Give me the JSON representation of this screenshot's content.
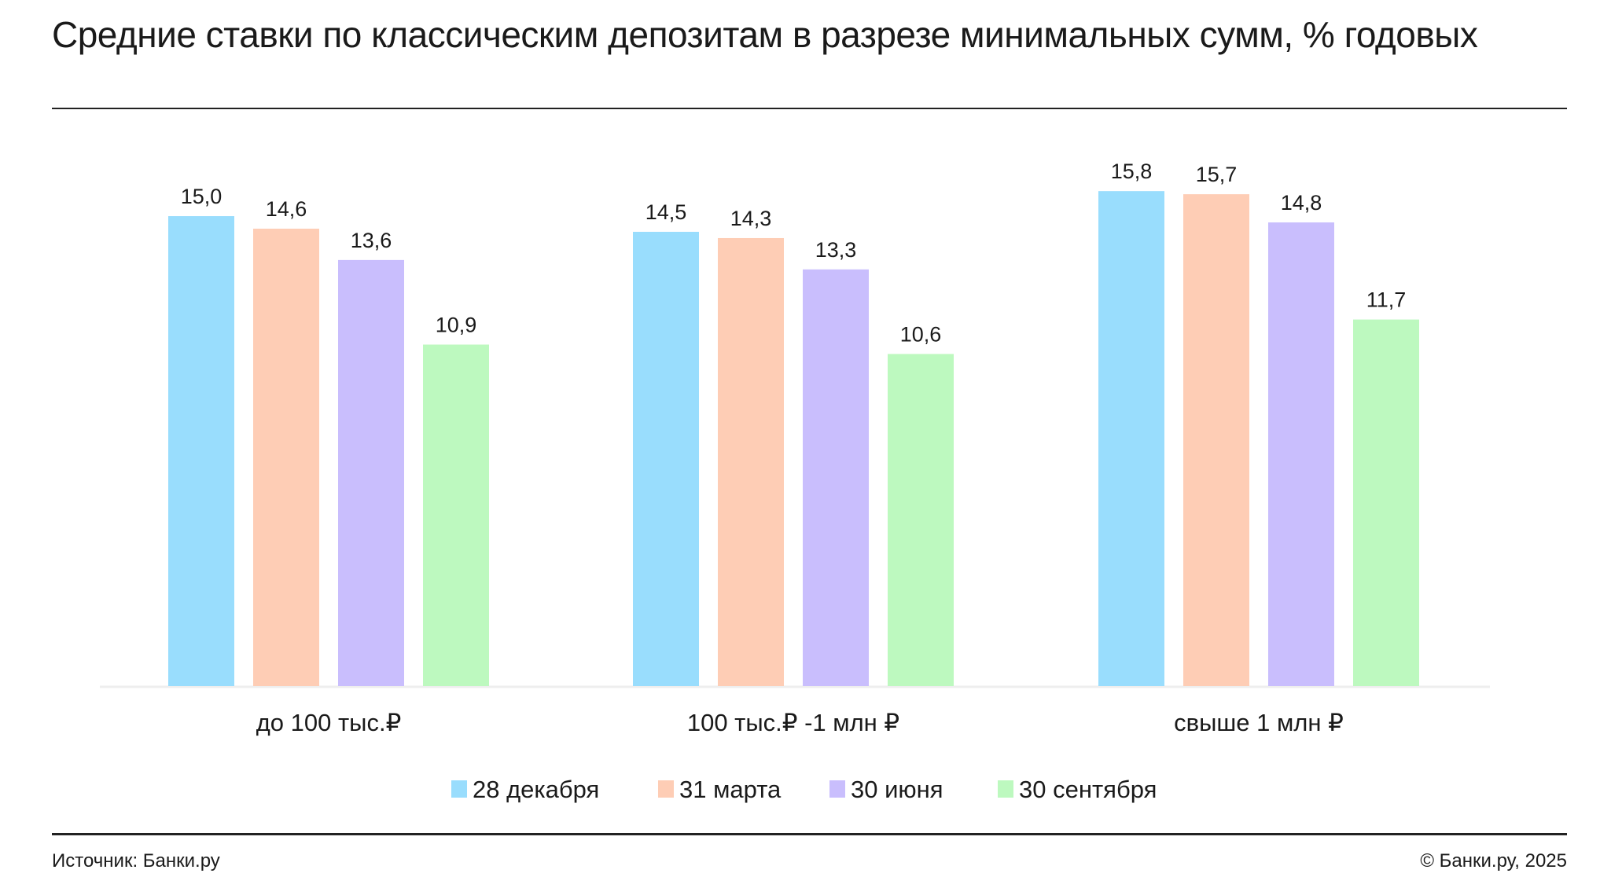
{
  "chart_data": {
    "type": "bar",
    "title": "Средние ставки по классическим депозитам в разрезе минимальных сумм, % годовых",
    "xlabel": "",
    "ylabel": "",
    "categories": [
      "до 100 тыс.₽",
      "100 тыс.₽ -1 млн ₽",
      "свыше 1 млн ₽"
    ],
    "series": [
      {
        "name": "28 декабря",
        "color": "#99DDFD",
        "values": [
          15.0,
          14.5,
          15.8
        ],
        "labels": [
          "15,0",
          "14,5",
          "15,8"
        ]
      },
      {
        "name": "31 марта",
        "color": "#FECDB5",
        "values": [
          14.6,
          14.3,
          15.7
        ],
        "labels": [
          "14,6",
          "14,3",
          "15,7"
        ]
      },
      {
        "name": "30 июня",
        "color": "#C9BEFD",
        "values": [
          13.6,
          13.3,
          14.8
        ],
        "labels": [
          "13,6",
          "13,3",
          "14,8"
        ]
      },
      {
        "name": "30 сентября",
        "color": "#BDF9BF",
        "values": [
          10.9,
          10.6,
          11.7
        ],
        "labels": [
          "10,9",
          "10,6",
          "11,7"
        ]
      }
    ],
    "ylim": [
      0,
      21.9
    ],
    "grid": false,
    "legend": "bottom-center"
  },
  "footer": {
    "source": "Источник: Банки.ру",
    "copyright": "© Банки.ру, 2025"
  }
}
